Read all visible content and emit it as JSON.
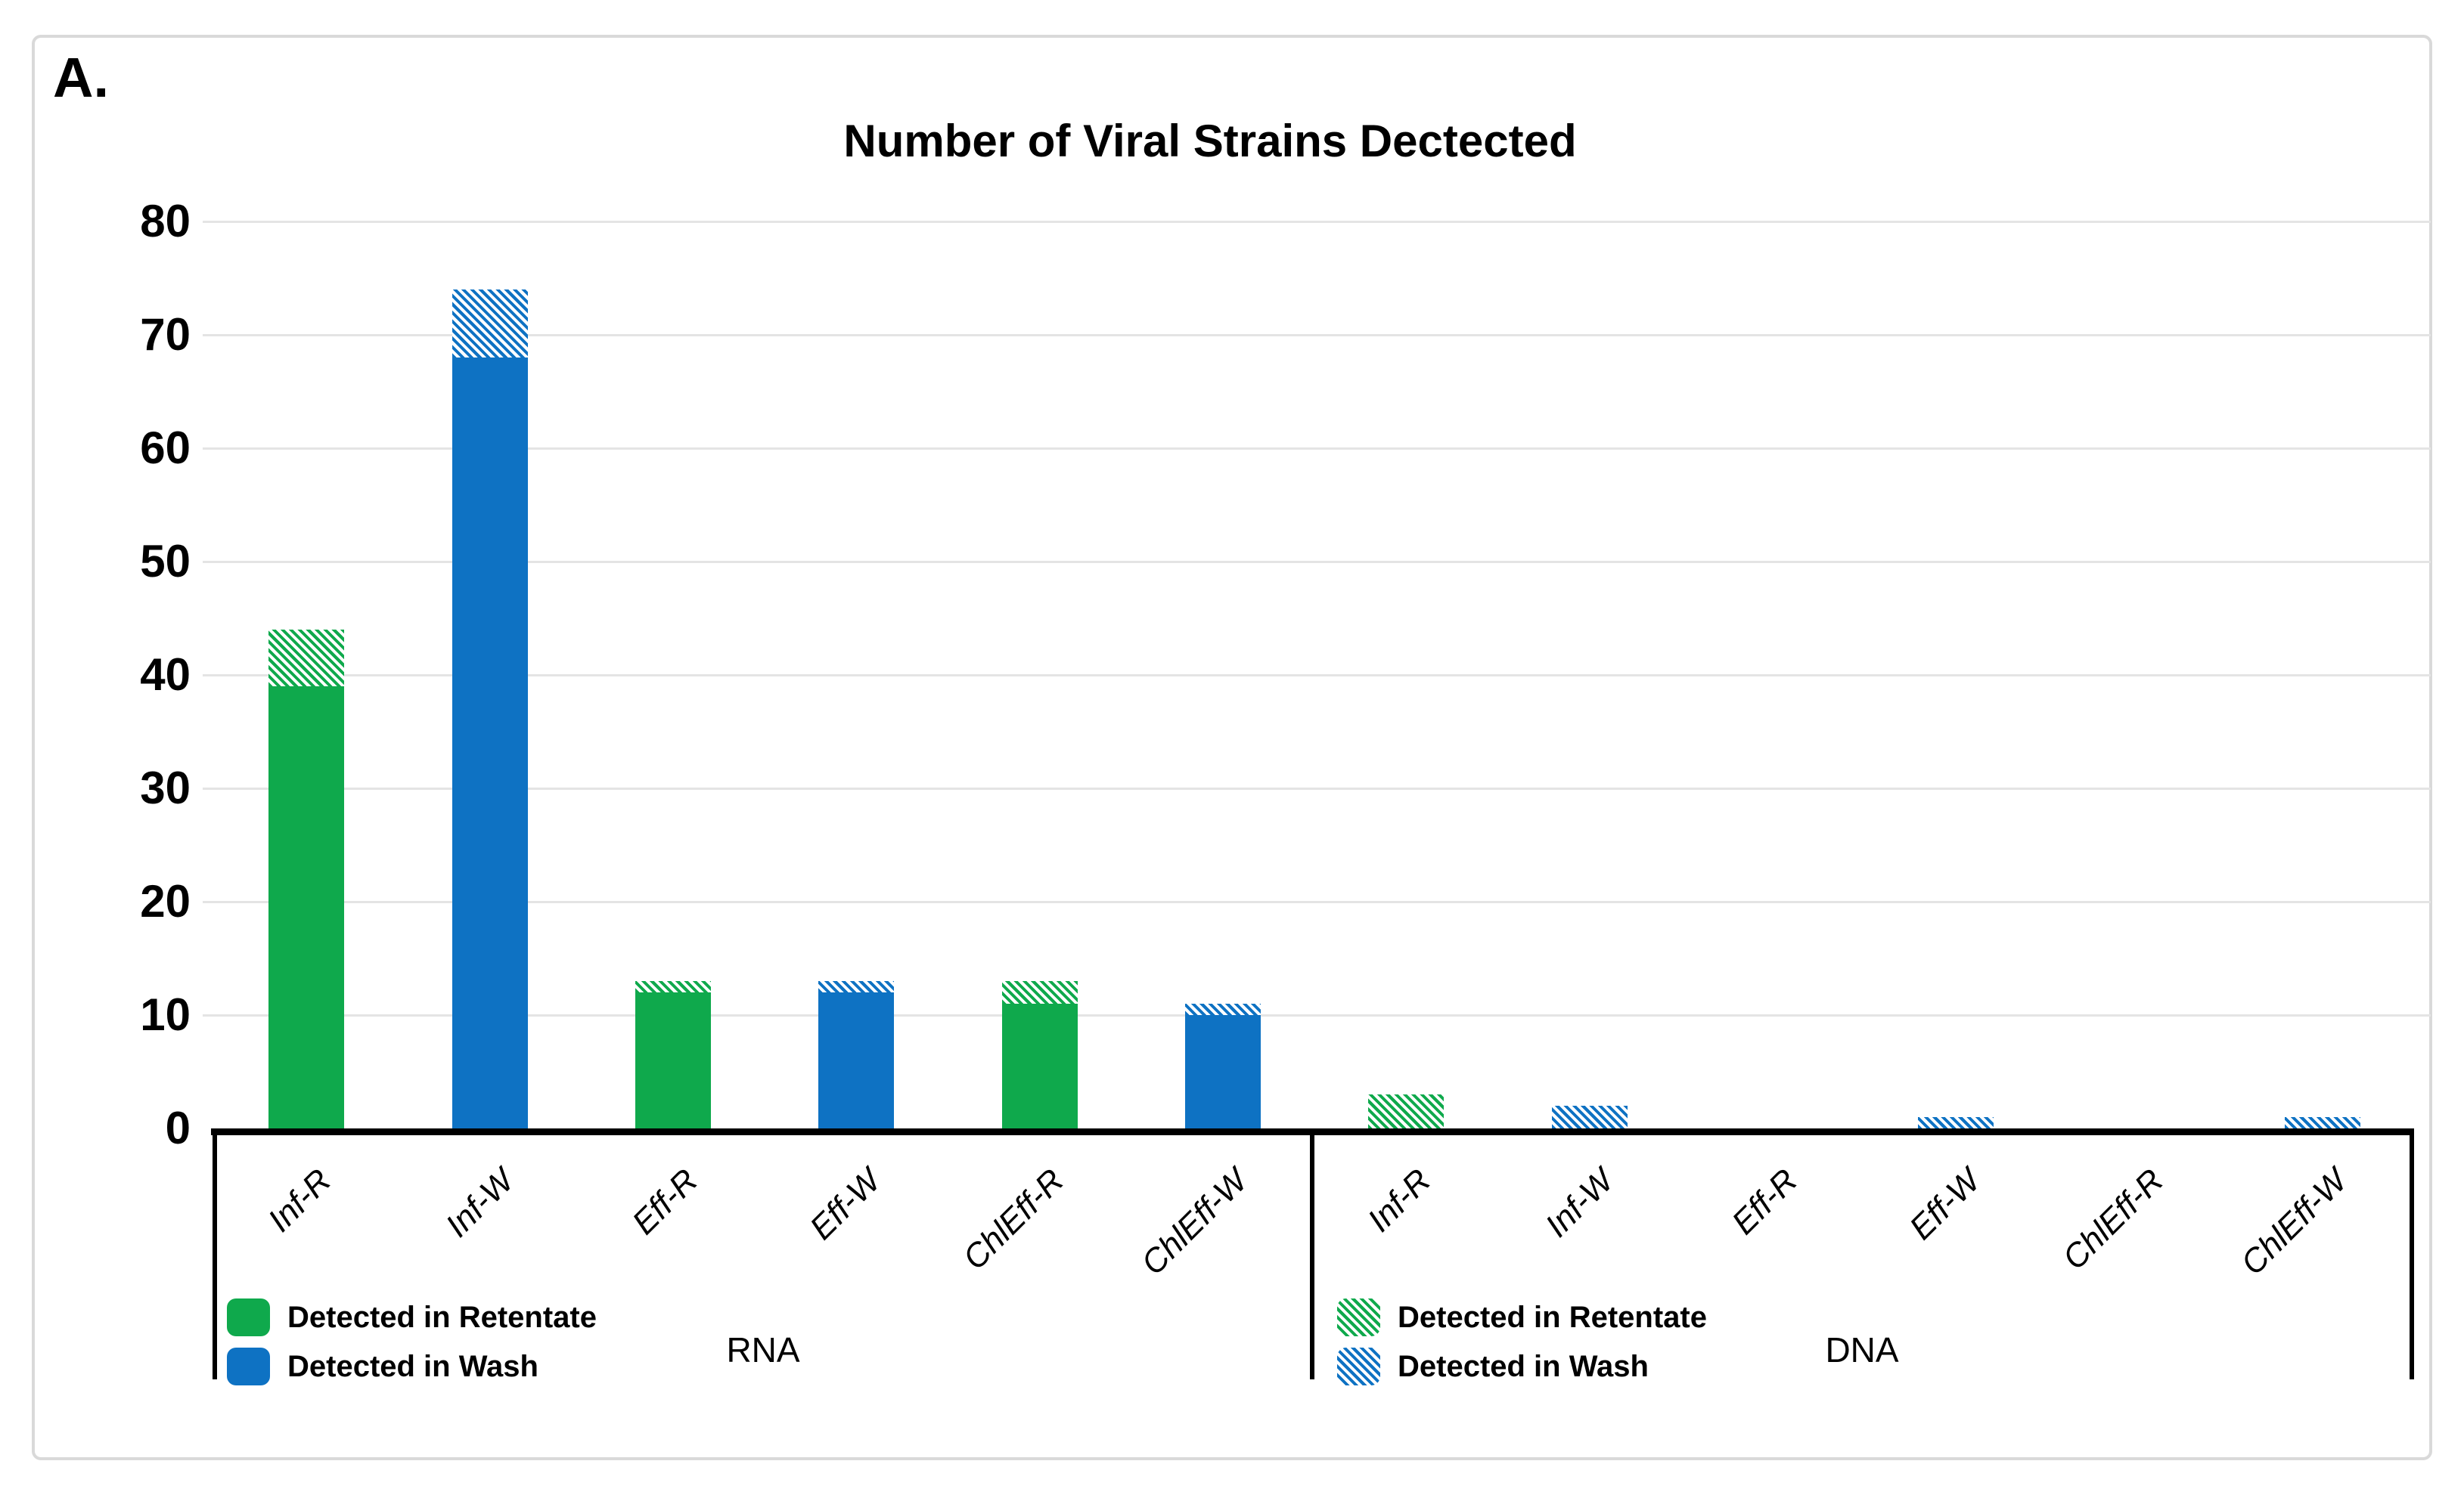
{
  "panel_label": "A.",
  "title": "Number of Viral Strains Dectected",
  "colors": {
    "retentate": "#0fa94c",
    "wash": "#0e72c3",
    "gridline": "#e4e4e4",
    "frame": "#d9d9d9",
    "axis": "#000000"
  },
  "y_axis": {
    "ticks": [
      "80",
      "70",
      "60",
      "50",
      "40",
      "30",
      "20",
      "10",
      "0"
    ],
    "min": 0,
    "max": 80,
    "interval": 10
  },
  "chart_data": {
    "type": "bar",
    "title": "Number of Viral Strains Dectected",
    "stacking": "stacked",
    "ylim": [
      0,
      80
    ],
    "grid": true,
    "legend_position": "below-axis, one legend per group",
    "groups": [
      {
        "label": "RNA",
        "legend": [
          {
            "swatch": "solid-retentate",
            "label": "Detected in Retentate"
          },
          {
            "swatch": "solid-wash",
            "label": "Detected in Wash"
          }
        ],
        "bars": [
          {
            "category": "Inf-R",
            "series": "retentate",
            "solid": 39,
            "hatched": 5,
            "total": 44
          },
          {
            "category": "Inf-W",
            "series": "wash",
            "solid": 68,
            "hatched": 6,
            "total": 74
          },
          {
            "category": "Eff-R",
            "series": "retentate",
            "solid": 12,
            "hatched": 1,
            "total": 13
          },
          {
            "category": "Eff-W",
            "series": "wash",
            "solid": 12,
            "hatched": 1,
            "total": 13
          },
          {
            "category": "ChlEff-R",
            "series": "retentate",
            "solid": 11,
            "hatched": 2,
            "total": 13
          },
          {
            "category": "ChlEff-W",
            "series": "wash",
            "solid": 10,
            "hatched": 1,
            "total": 11
          }
        ]
      },
      {
        "label": "DNA",
        "legend": [
          {
            "swatch": "hatched-retentate",
            "label": "Detected in Retentate"
          },
          {
            "swatch": "hatched-wash",
            "label": "Detected in Wash"
          }
        ],
        "bars": [
          {
            "category": "Inf-R",
            "series": "retentate",
            "solid": 0,
            "hatched": 3,
            "total": 3
          },
          {
            "category": "Inf-W",
            "series": "wash",
            "solid": 0,
            "hatched": 2,
            "total": 2
          },
          {
            "category": "Eff-R",
            "series": "retentate",
            "solid": 0,
            "hatched": 0,
            "total": 0
          },
          {
            "category": "Eff-W",
            "series": "wash",
            "solid": 0,
            "hatched": 1,
            "total": 1
          },
          {
            "category": "ChlEff-R",
            "series": "retentate",
            "solid": 0,
            "hatched": 0,
            "total": 0
          },
          {
            "category": "ChlEff-W",
            "series": "wash",
            "solid": 0,
            "hatched": 1,
            "total": 1
          }
        ]
      }
    ]
  }
}
